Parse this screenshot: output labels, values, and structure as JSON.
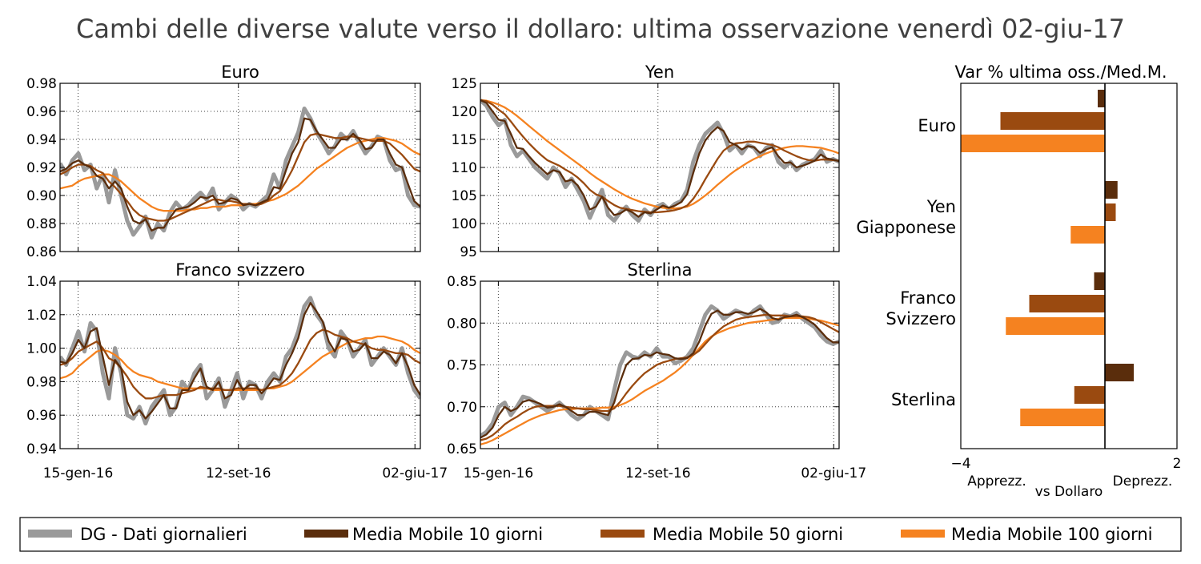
{
  "title": "Cambi delle diverse valute verso il dollaro: ultima osservazione venerdì 02-giu-17",
  "colors": {
    "daily": "#9a9a9a",
    "ma10": "#5a2d0c",
    "ma50": "#9a4a10",
    "ma100": "#f58220",
    "appr": "#1a9a1a",
    "depr": "#a01010"
  },
  "legend": {
    "items": [
      {
        "label": "DG - Dati giornalieri"
      },
      {
        "label": "Media Mobile 10 giorni"
      },
      {
        "label": "Media Mobile 50 giorni"
      },
      {
        "label": "Media Mobile 100 giorni"
      }
    ]
  },
  "chart_data": [
    {
      "type": "line",
      "title": "Euro",
      "x_ticks": [
        "15-gen-16",
        "12-set-16",
        "02-giu-17"
      ],
      "y_ticks": [
        "0.86",
        "0.88",
        "0.90",
        "0.92",
        "0.94",
        "0.96",
        "0.98"
      ],
      "ylim": [
        0.86,
        0.98
      ],
      "grid": true,
      "series": {
        "daily": [
          0.923,
          0.915,
          0.925,
          0.93,
          0.918,
          0.922,
          0.905,
          0.915,
          0.895,
          0.918,
          0.9,
          0.882,
          0.872,
          0.878,
          0.885,
          0.87,
          0.88,
          0.875,
          0.888,
          0.895,
          0.89,
          0.893,
          0.898,
          0.902,
          0.897,
          0.905,
          0.89,
          0.895,
          0.9,
          0.897,
          0.89,
          0.894,
          0.892,
          0.896,
          0.9,
          0.915,
          0.905,
          0.925,
          0.935,
          0.945,
          0.962,
          0.955,
          0.945,
          0.938,
          0.93,
          0.935,
          0.944,
          0.94,
          0.946,
          0.938,
          0.93,
          0.935,
          0.942,
          0.94,
          0.925,
          0.918,
          0.92,
          0.9,
          0.893,
          0.892
        ],
        "ma10": [
          0.917,
          0.919,
          0.923,
          0.925,
          0.922,
          0.92,
          0.914,
          0.912,
          0.905,
          0.91,
          0.905,
          0.892,
          0.882,
          0.88,
          0.883,
          0.875,
          0.877,
          0.877,
          0.884,
          0.89,
          0.891,
          0.892,
          0.895,
          0.899,
          0.898,
          0.9,
          0.894,
          0.895,
          0.898,
          0.897,
          0.893,
          0.894,
          0.893,
          0.895,
          0.897,
          0.906,
          0.905,
          0.918,
          0.93,
          0.938,
          0.955,
          0.954,
          0.946,
          0.94,
          0.934,
          0.934,
          0.94,
          0.94,
          0.944,
          0.94,
          0.933,
          0.934,
          0.94,
          0.94,
          0.93,
          0.922,
          0.92,
          0.908,
          0.896,
          0.892
        ],
        "ma50": [
          0.915,
          0.917,
          0.92,
          0.922,
          0.922,
          0.921,
          0.918,
          0.916,
          0.91,
          0.906,
          0.901,
          0.896,
          0.89,
          0.886,
          0.884,
          0.883,
          0.882,
          0.882,
          0.883,
          0.885,
          0.887,
          0.889,
          0.891,
          0.893,
          0.895,
          0.897,
          0.897,
          0.896,
          0.896,
          0.895,
          0.894,
          0.894,
          0.893,
          0.894,
          0.896,
          0.9,
          0.903,
          0.91,
          0.918,
          0.928,
          0.938,
          0.943,
          0.944,
          0.943,
          0.942,
          0.941,
          0.941,
          0.942,
          0.942,
          0.941,
          0.94,
          0.939,
          0.939,
          0.939,
          0.937,
          0.933,
          0.929,
          0.924,
          0.919,
          0.917
        ],
        "ma100": [
          0.905,
          0.906,
          0.907,
          0.91,
          0.912,
          0.913,
          0.914,
          0.915,
          0.915,
          0.913,
          0.91,
          0.906,
          0.902,
          0.898,
          0.895,
          0.892,
          0.89,
          0.889,
          0.889,
          0.889,
          0.889,
          0.89,
          0.89,
          0.891,
          0.891,
          0.892,
          0.892,
          0.892,
          0.893,
          0.893,
          0.893,
          0.894,
          0.894,
          0.895,
          0.896,
          0.897,
          0.899,
          0.901,
          0.904,
          0.907,
          0.911,
          0.915,
          0.919,
          0.922,
          0.925,
          0.928,
          0.931,
          0.934,
          0.936,
          0.938,
          0.939,
          0.94,
          0.941,
          0.941,
          0.94,
          0.939,
          0.937,
          0.934,
          0.931,
          0.929
        ]
      }
    },
    {
      "type": "line",
      "title": "Yen",
      "x_ticks": [],
      "y_ticks": [
        "95",
        "100",
        "105",
        "110",
        "115",
        "120",
        "125"
      ],
      "ylim": [
        95,
        125
      ],
      "grid": true,
      "series": {
        "daily": [
          122.0,
          121.0,
          119.0,
          117.5,
          118.5,
          114.0,
          112.0,
          113.0,
          111.5,
          110.0,
          109.0,
          108.0,
          110.0,
          109.0,
          106.5,
          108.0,
          106.0,
          104.0,
          101.0,
          103.5,
          106.0,
          101.5,
          100.5,
          102.0,
          103.0,
          101.5,
          100.5,
          102.5,
          101.5,
          103.0,
          103.5,
          102.5,
          103.5,
          104.0,
          106.0,
          111.0,
          114.0,
          116.0,
          117.0,
          118.0,
          116.0,
          113.0,
          114.0,
          112.5,
          114.0,
          113.5,
          112.0,
          113.5,
          114.0,
          111.0,
          110.0,
          111.0,
          109.5,
          110.5,
          111.0,
          111.5,
          113.0,
          111.0,
          111.5,
          111.0
        ],
        "ma10": [
          122.0,
          121.5,
          120.0,
          118.5,
          118.3,
          116.0,
          113.5,
          113.3,
          112.0,
          110.8,
          109.8,
          108.8,
          109.5,
          109.2,
          107.5,
          107.8,
          106.8,
          105.0,
          102.5,
          103.0,
          104.8,
          102.8,
          101.5,
          101.8,
          102.5,
          102.0,
          101.2,
          102.0,
          101.8,
          102.5,
          103.2,
          102.8,
          103.2,
          103.8,
          105.2,
          109.0,
          112.5,
          114.8,
          116.2,
          117.2,
          116.5,
          114.5,
          114.0,
          113.2,
          113.8,
          113.6,
          112.6,
          113.2,
          113.6,
          112.0,
          110.8,
          110.9,
          110.0,
          110.3,
          110.7,
          111.2,
          112.3,
          111.6,
          111.4,
          111.1
        ],
        "ma50": [
          122.0,
          121.8,
          121.2,
          120.3,
          119.5,
          118.2,
          116.8,
          115.5,
          114.3,
          113.2,
          112.2,
          111.3,
          110.8,
          110.3,
          109.6,
          109.0,
          108.2,
          107.2,
          106.0,
          105.2,
          104.8,
          104.0,
          103.3,
          102.8,
          102.6,
          102.4,
          102.2,
          102.1,
          102.0,
          102.0,
          102.1,
          102.2,
          102.4,
          102.7,
          103.2,
          104.4,
          106.0,
          107.9,
          109.7,
          111.5,
          113.0,
          113.8,
          114.3,
          114.4,
          114.6,
          114.6,
          114.4,
          114.2,
          114.0,
          113.6,
          113.0,
          112.5,
          112.0,
          111.6,
          111.3,
          111.2,
          111.4,
          111.4,
          111.3,
          111.2
        ],
        "ma100": [
          122.0,
          121.9,
          121.6,
          121.2,
          120.7,
          120.0,
          119.2,
          118.3,
          117.4,
          116.5,
          115.6,
          114.7,
          113.9,
          113.1,
          112.3,
          111.5,
          110.7,
          109.9,
          109.0,
          108.2,
          107.5,
          106.8,
          106.1,
          105.5,
          104.9,
          104.4,
          104.0,
          103.6,
          103.3,
          103.0,
          102.8,
          102.7,
          102.7,
          102.8,
          103.0,
          103.5,
          104.2,
          105.0,
          105.9,
          106.9,
          107.8,
          108.7,
          109.5,
          110.2,
          110.9,
          111.5,
          112.0,
          112.5,
          112.9,
          113.2,
          113.5,
          113.7,
          113.8,
          113.8,
          113.7,
          113.6,
          113.5,
          113.2,
          112.9,
          112.5
        ]
      }
    },
    {
      "type": "line",
      "title": "Franco svizzero",
      "x_ticks": [],
      "y_ticks": [
        "0.94",
        "0.96",
        "0.98",
        "1.00",
        "1.02",
        "1.04"
      ],
      "ylim": [
        0.94,
        1.04
      ],
      "grid": true,
      "series": {
        "daily": [
          0.995,
          0.99,
          1.0,
          1.01,
          0.998,
          1.015,
          1.01,
          0.985,
          0.97,
          1.0,
          0.985,
          0.96,
          0.958,
          0.965,
          0.955,
          0.965,
          0.97,
          0.975,
          0.96,
          0.965,
          0.98,
          0.975,
          0.985,
          0.99,
          0.97,
          0.975,
          0.982,
          0.965,
          0.975,
          0.985,
          0.97,
          0.98,
          0.978,
          0.97,
          0.98,
          0.985,
          0.98,
          0.995,
          1.0,
          1.01,
          1.025,
          1.03,
          1.02,
          1.015,
          1.0,
          0.995,
          1.01,
          1.005,
          0.995,
          1.0,
          1.005,
          0.99,
          0.995,
          1.0,
          0.995,
          0.99,
          1.0,
          0.985,
          0.975,
          0.97
        ],
        "ma10": [
          0.992,
          0.991,
          0.997,
          1.005,
          1.0,
          1.01,
          1.012,
          0.995,
          0.978,
          0.993,
          0.988,
          0.968,
          0.96,
          0.963,
          0.958,
          0.962,
          0.967,
          0.972,
          0.964,
          0.964,
          0.975,
          0.975,
          0.982,
          0.988,
          0.977,
          0.975,
          0.98,
          0.97,
          0.972,
          0.981,
          0.975,
          0.978,
          0.978,
          0.973,
          0.977,
          0.982,
          0.981,
          0.99,
          0.997,
          1.006,
          1.02,
          1.027,
          1.022,
          1.016,
          1.004,
          0.998,
          1.006,
          1.005,
          0.998,
          0.999,
          1.003,
          0.994,
          0.994,
          0.998,
          0.996,
          0.991,
          0.997,
          0.989,
          0.978,
          0.972
        ],
        "ma50": [
          0.99,
          0.991,
          0.994,
          0.998,
          1.0,
          1.002,
          1.004,
          1.0,
          0.994,
          0.992,
          0.988,
          0.983,
          0.977,
          0.973,
          0.97,
          0.97,
          0.971,
          0.972,
          0.972,
          0.972,
          0.973,
          0.974,
          0.975,
          0.977,
          0.976,
          0.976,
          0.976,
          0.975,
          0.975,
          0.976,
          0.976,
          0.976,
          0.976,
          0.975,
          0.976,
          0.977,
          0.978,
          0.981,
          0.985,
          0.991,
          0.998,
          1.005,
          1.009,
          1.011,
          1.01,
          1.008,
          1.007,
          1.006,
          1.004,
          1.003,
          1.002,
          1.0,
          0.999,
          0.999,
          0.998,
          0.997,
          0.997,
          0.996,
          0.993,
          0.991
        ],
        "ma100": [
          0.982,
          0.983,
          0.985,
          0.989,
          0.992,
          0.995,
          0.998,
          0.999,
          0.998,
          0.996,
          0.993,
          0.989,
          0.986,
          0.984,
          0.983,
          0.982,
          0.98,
          0.979,
          0.978,
          0.977,
          0.976,
          0.976,
          0.976,
          0.976,
          0.976,
          0.975,
          0.975,
          0.975,
          0.975,
          0.975,
          0.975,
          0.975,
          0.975,
          0.975,
          0.976,
          0.976,
          0.977,
          0.978,
          0.98,
          0.983,
          0.986,
          0.989,
          0.992,
          0.995,
          0.997,
          0.999,
          1.001,
          1.003,
          1.004,
          1.005,
          1.006,
          1.006,
          1.007,
          1.007,
          1.006,
          1.005,
          1.004,
          1.002,
          0.999,
          0.997
        ]
      }
    },
    {
      "type": "line",
      "title": "Sterlina",
      "x_ticks": [],
      "y_ticks": [
        "0.65",
        "0.70",
        "0.75",
        "0.80",
        "0.85"
      ],
      "ylim": [
        0.65,
        0.85
      ],
      "grid": true,
      "series": {
        "daily": [
          0.665,
          0.67,
          0.68,
          0.7,
          0.705,
          0.69,
          0.7,
          0.712,
          0.71,
          0.705,
          0.7,
          0.695,
          0.7,
          0.705,
          0.698,
          0.69,
          0.685,
          0.69,
          0.7,
          0.695,
          0.69,
          0.685,
          0.72,
          0.75,
          0.765,
          0.76,
          0.758,
          0.765,
          0.76,
          0.77,
          0.76,
          0.76,
          0.752,
          0.755,
          0.76,
          0.77,
          0.79,
          0.81,
          0.82,
          0.815,
          0.805,
          0.81,
          0.815,
          0.812,
          0.808,
          0.815,
          0.82,
          0.81,
          0.8,
          0.802,
          0.81,
          0.808,
          0.812,
          0.805,
          0.8,
          0.795,
          0.785,
          0.778,
          0.775,
          0.778
        ],
        "ma10": [
          0.663,
          0.667,
          0.675,
          0.69,
          0.7,
          0.695,
          0.698,
          0.706,
          0.708,
          0.706,
          0.703,
          0.699,
          0.7,
          0.703,
          0.7,
          0.695,
          0.69,
          0.69,
          0.694,
          0.694,
          0.692,
          0.69,
          0.705,
          0.73,
          0.75,
          0.757,
          0.758,
          0.762,
          0.761,
          0.765,
          0.763,
          0.762,
          0.758,
          0.757,
          0.758,
          0.764,
          0.778,
          0.797,
          0.811,
          0.815,
          0.81,
          0.81,
          0.813,
          0.813,
          0.811,
          0.813,
          0.817,
          0.813,
          0.806,
          0.804,
          0.807,
          0.808,
          0.81,
          0.807,
          0.803,
          0.798,
          0.79,
          0.782,
          0.777,
          0.777
        ],
        "ma50": [
          0.66,
          0.662,
          0.666,
          0.672,
          0.679,
          0.684,
          0.688,
          0.693,
          0.697,
          0.7,
          0.701,
          0.701,
          0.701,
          0.701,
          0.7,
          0.699,
          0.698,
          0.697,
          0.697,
          0.696,
          0.695,
          0.695,
          0.698,
          0.706,
          0.716,
          0.725,
          0.733,
          0.74,
          0.745,
          0.75,
          0.753,
          0.755,
          0.757,
          0.758,
          0.759,
          0.762,
          0.767,
          0.775,
          0.783,
          0.79,
          0.796,
          0.8,
          0.804,
          0.806,
          0.807,
          0.808,
          0.809,
          0.81,
          0.809,
          0.809,
          0.809,
          0.808,
          0.808,
          0.808,
          0.807,
          0.805,
          0.801,
          0.797,
          0.793,
          0.789
        ],
        "ma100": [
          0.655,
          0.657,
          0.66,
          0.664,
          0.668,
          0.672,
          0.676,
          0.68,
          0.684,
          0.687,
          0.69,
          0.692,
          0.694,
          0.696,
          0.697,
          0.697,
          0.698,
          0.698,
          0.698,
          0.698,
          0.699,
          0.699,
          0.7,
          0.702,
          0.705,
          0.709,
          0.714,
          0.719,
          0.723,
          0.727,
          0.731,
          0.736,
          0.741,
          0.747,
          0.754,
          0.762,
          0.77,
          0.778,
          0.784,
          0.788,
          0.791,
          0.794,
          0.796,
          0.798,
          0.8,
          0.801,
          0.802,
          0.803,
          0.804,
          0.805,
          0.806,
          0.806,
          0.806,
          0.806,
          0.805,
          0.804,
          0.803,
          0.801,
          0.799,
          0.797
        ]
      }
    },
    {
      "type": "bar",
      "orientation": "horizontal",
      "title": "Var % ultima oss./Med.M.",
      "categories": [
        "Euro",
        "Yen\nGiapponese",
        "Franco\nSvizzero",
        "Sterlina"
      ],
      "series": [
        {
          "name": "DG - Dati giornalieri",
          "key": "daily",
          "values": [
            -0.2,
            0.35,
            -0.3,
            0.8
          ]
        },
        {
          "name": "Media Mobile 10 giorni",
          "key": "ma10",
          "values": [
            -2.9,
            0.3,
            -2.1,
            -0.85
          ]
        },
        {
          "name": "Media Mobile 50 giorni",
          "key": "ma50",
          "values": [
            -4.05,
            -0.95,
            -2.75,
            -2.35
          ]
        },
        {
          "name": "Media Mobile 100 giorni",
          "key": "ma100",
          "values": [
            0,
            0,
            0,
            0
          ]
        }
      ],
      "x_ticks": [
        "−4",
        "2"
      ],
      "xlim": [
        -4,
        2
      ],
      "left_note": "Apprezz.",
      "center_note": "vs Dollaro",
      "right_note": "Deprezz."
    }
  ]
}
